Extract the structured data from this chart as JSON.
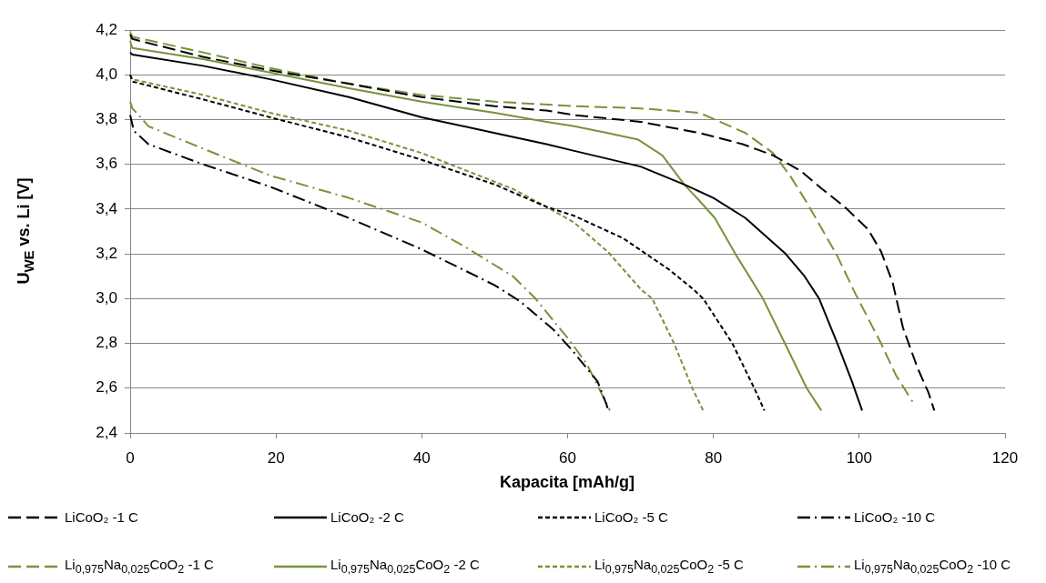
{
  "chart_data": {
    "type": "line",
    "xlabel": "Kapacita [mAh/g]",
    "ylabel": "U$_{WE}$ vs. Li [V]",
    "xlim": [
      0,
      120
    ],
    "xticks": [
      0,
      20,
      40,
      60,
      80,
      100,
      120
    ],
    "ylim": [
      2.4,
      4.2
    ],
    "yticks": [
      {
        "value": 2.4,
        "label": "2,4"
      },
      {
        "value": 2.6,
        "label": "2,6"
      },
      {
        "value": 2.8,
        "label": "2,8"
      },
      {
        "value": 3.0,
        "label": "3,0"
      },
      {
        "value": 3.2,
        "label": "3,2"
      },
      {
        "value": 3.4,
        "label": "3,4"
      },
      {
        "value": 3.6,
        "label": "3,6"
      },
      {
        "value": 3.8,
        "label": "3,8"
      },
      {
        "value": 4.0,
        "label": "4,0"
      },
      {
        "value": 4.2,
        "label": "4,2"
      }
    ],
    "grid": "y",
    "legend": "bottom",
    "marker": "none",
    "series": [
      {
        "name": "LiCoO₂ -1 C",
        "color": "#000000",
        "line_style": "dashed",
        "x": [
          0,
          0.3,
          10,
          19.2,
          30,
          40,
          50,
          57.1,
          60.9,
          70,
          78.1,
          84,
          88.2,
          92,
          94.9,
          98,
          101.2,
          103,
          104.6,
          106,
          108,
          109.5,
          110.3
        ],
        "values": [
          4.18,
          4.16,
          4.08,
          4.02,
          3.96,
          3.9,
          3.86,
          3.84,
          3.82,
          3.79,
          3.74,
          3.69,
          3.64,
          3.57,
          3.49,
          3.41,
          3.31,
          3.21,
          3.07,
          2.87,
          2.69,
          2.58,
          2.5
        ]
      },
      {
        "name": "LiCoO₂ -2 C",
        "color": "#000000",
        "line_style": "solid",
        "x": [
          0,
          0.3,
          10,
          19.2,
          30,
          40,
          50,
          57.1,
          60.9,
          70,
          76,
          80,
          84.4,
          89.9,
          92.5,
          94.5,
          97,
          99,
          100.4
        ],
        "values": [
          4.1,
          4.09,
          4.04,
          3.98,
          3.9,
          3.81,
          3.74,
          3.69,
          3.66,
          3.59,
          3.51,
          3.45,
          3.36,
          3.2,
          3.1,
          3.0,
          2.8,
          2.63,
          2.5
        ]
      },
      {
        "name": "LiCoO₂ -5 C",
        "color": "#000000",
        "line_style": "dotted",
        "x": [
          0,
          0.3,
          10,
          19.2,
          30,
          40,
          50,
          57.1,
          60.9,
          67.6,
          73.9,
          77.3,
          78.6,
          82.6,
          85.6,
          87
        ],
        "values": [
          4.0,
          3.97,
          3.89,
          3.81,
          3.72,
          3.62,
          3.51,
          3.41,
          3.37,
          3.27,
          3.13,
          3.04,
          3.0,
          2.8,
          2.6,
          2.5
        ]
      },
      {
        "name": "LiCoO₂ -10 C",
        "color": "#000000",
        "line_style": "dashdot",
        "x": [
          0,
          0.5,
          2.5,
          10,
          19.2,
          30,
          40,
          50,
          53.6,
          58.1,
          60.6,
          64.1,
          65.3,
          65.6
        ],
        "values": [
          3.82,
          3.75,
          3.69,
          3.6,
          3.5,
          3.36,
          3.22,
          3.06,
          2.985,
          2.86,
          2.77,
          2.63,
          2.53,
          2.5
        ]
      },
      {
        "name": "Li$_{0,975}$Na$_{0,025}$CoO$_{2}$ -1 C",
        "color": "#77933c",
        "line_style": "dashed",
        "x": [
          0,
          0.3,
          10,
          19.2,
          30,
          40,
          50,
          60.9,
          70,
          78.1,
          80.2,
          84.4,
          88.2,
          90.5,
          92.8,
          97,
          99.5,
          103,
          105,
          107.3
        ],
        "values": [
          4.19,
          4.17,
          4.1,
          4.03,
          3.96,
          3.91,
          3.88,
          3.86,
          3.85,
          3.83,
          3.8,
          3.74,
          3.65,
          3.55,
          3.43,
          3.19,
          3.02,
          2.8,
          2.66,
          2.54
        ]
      },
      {
        "name": "Li$_{0,975}$Na$_{0,025}$CoO$_{2}$ -2 C",
        "color": "#77933c",
        "line_style": "solid",
        "x": [
          0,
          0.3,
          10,
          19.2,
          30,
          40,
          50,
          57.1,
          60.9,
          65.5,
          69.7,
          73,
          76,
          78,
          80.2,
          83,
          86.8,
          89.8,
          92.8,
          94.8
        ],
        "values": [
          4.15,
          4.12,
          4.07,
          4.01,
          3.94,
          3.88,
          3.83,
          3.79,
          3.77,
          3.74,
          3.71,
          3.64,
          3.51,
          3.44,
          3.36,
          3.2,
          3.0,
          2.8,
          2.6,
          2.5
        ]
      },
      {
        "name": "Li$_{0,975}$Na$_{0,025}$CoO$_{2}$ -5 C",
        "color": "#77933c",
        "line_style": "dotted",
        "x": [
          0,
          0.3,
          10,
          19.2,
          30,
          40,
          52.5,
          57.1,
          60.9,
          65.5,
          70.1,
          71.6,
          74.6,
          77.1,
          78.6
        ],
        "values": [
          4.0,
          3.98,
          3.91,
          3.83,
          3.75,
          3.65,
          3.49,
          3.41,
          3.34,
          3.21,
          3.04,
          3.0,
          2.8,
          2.6,
          2.5
        ]
      },
      {
        "name": "Li$_{0,975}$Na$_{0,025}$CoO$_{2}$ -10 C",
        "color": "#77933c",
        "line_style": "dashdot",
        "x": [
          0,
          0.3,
          1.7,
          2.5,
          10,
          19.2,
          30,
          40,
          46,
          52.5,
          55.6,
          60.1,
          62.6,
          64.6,
          65.8
        ],
        "values": [
          3.88,
          3.85,
          3.8,
          3.77,
          3.67,
          3.55,
          3.45,
          3.34,
          3.23,
          3.1,
          3.0,
          2.82,
          2.71,
          2.58,
          2.5
        ]
      }
    ]
  }
}
